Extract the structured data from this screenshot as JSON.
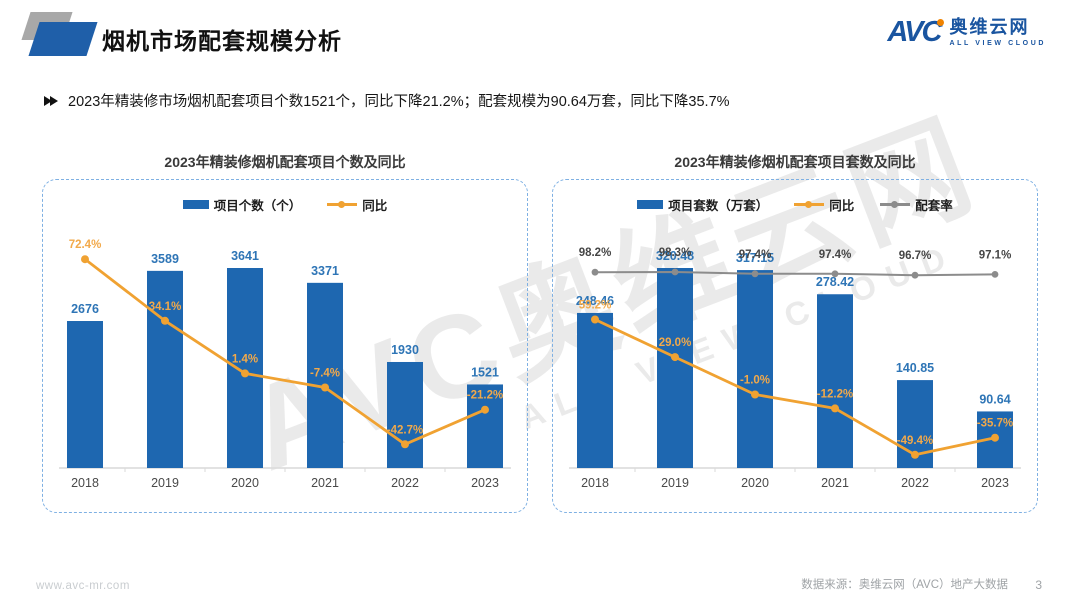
{
  "header": {
    "title": "烟机市场配套规模分析",
    "logo": {
      "brand": "AVC",
      "brand_cn": "奥维云网",
      "brand_en": "ALL VIEW CLOUD"
    }
  },
  "summary": {
    "bullet": "2023年精装修市场烟机配套项目个数1521个，同比下降21.2%；配套规模为90.64万套，同比下降35.7%"
  },
  "watermark": {
    "line1": "AVC奥维云网",
    "line2": "ALL VIEW CLOUD"
  },
  "palette": {
    "bar_blue": "#1e67b0",
    "label_blue": "#2e75b6",
    "orange": "#f0a232",
    "orange_label": "#f2a94a",
    "gray_line": "#8c8c8c",
    "gray_label": "#454545",
    "axis_line": "#d9d9d9",
    "axis_text": "#4a4a4a",
    "dashed_border": "#7eb0e3"
  },
  "chart_data": [
    {
      "type": "bar+line",
      "title": "2023年精装修烟机配套项目个数及同比",
      "categories": [
        "2018",
        "2019",
        "2020",
        "2021",
        "2022",
        "2023"
      ],
      "legend_position": "top",
      "grid": false,
      "ylim": [
        0,
        4000
      ],
      "y2lim": [
        -50,
        80
      ],
      "series": [
        {
          "name": "项目个数（个）",
          "type": "bar",
          "color": "#1e67b0",
          "values": [
            2676,
            3589,
            3641,
            3371,
            1930,
            1521
          ],
          "labels": [
            "2676",
            "3589",
            "3641",
            "3371",
            "1930",
            "1521"
          ]
        },
        {
          "name": "同比",
          "type": "line",
          "color": "#f0a232",
          "values": [
            72.4,
            34.1,
            1.4,
            -7.4,
            -42.7,
            -21.2
          ],
          "labels": [
            "72.4%",
            "34.1%",
            "1.4%",
            "-7.4%",
            "-42.7%",
            "-21.2%"
          ]
        }
      ]
    },
    {
      "type": "bar+line",
      "title": "2023年精装修烟机配套项目套数及同比",
      "categories": [
        "2018",
        "2019",
        "2020",
        "2021",
        "2022",
        "2023"
      ],
      "legend_position": "top",
      "grid": false,
      "ylim": [
        0,
        350
      ],
      "y2lim": [
        -60,
        70
      ],
      "y3lim": [
        90,
        100
      ],
      "series": [
        {
          "name": "项目套数（万套）",
          "type": "bar",
          "color": "#1e67b0",
          "values": [
            248.46,
            320.48,
            317.15,
            278.42,
            140.85,
            90.64
          ],
          "labels": [
            "248.46",
            "320.48",
            "317.15",
            "278.42",
            "140.85",
            "90.64"
          ]
        },
        {
          "name": "同比",
          "type": "line",
          "color": "#f0a232",
          "values": [
            59.2,
            29.0,
            -1.0,
            -12.2,
            -49.4,
            -35.7
          ],
          "labels": [
            "59.2%",
            "29.0%",
            "-1.0%",
            "-12.2%",
            "-49.4%",
            "-35.7%"
          ]
        },
        {
          "name": "配套率",
          "type": "line",
          "color": "#8c8c8c",
          "values": [
            98.2,
            98.3,
            97.4,
            97.4,
            96.7,
            97.1
          ],
          "labels": [
            "98.2%",
            "98.3%",
            "97.4%",
            "97.4%",
            "96.7%",
            "97.1%"
          ]
        }
      ]
    }
  ],
  "footer": {
    "website": "www.avc-mr.com",
    "source": "数据来源：奥维云网（AVC）地产大数据",
    "page": "3"
  }
}
